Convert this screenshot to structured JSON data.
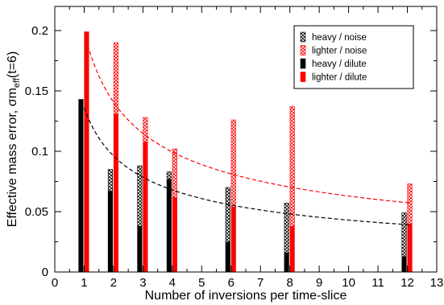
{
  "chart_data": {
    "type": "bar",
    "xlabel": "Number of inversions per time-slice",
    "ylabel_main": "Effective mass error, σm",
    "ylabel_sub": "eff",
    "ylabel_tail": "(t=6)",
    "xlim": [
      0,
      13
    ],
    "ylim": [
      0,
      0.22
    ],
    "xticks": [
      "0",
      "1",
      "2",
      "3",
      "4",
      "5",
      "6",
      "7",
      "8",
      "9",
      "10",
      "11",
      "12",
      "13"
    ],
    "yticks": [
      {
        "value": 0,
        "label": "0"
      },
      {
        "value": 0.05,
        "label": "0.05"
      },
      {
        "value": 0.1,
        "label": "0.1"
      },
      {
        "value": 0.15,
        "label": "0.15"
      },
      {
        "value": 0.2,
        "label": "0.2"
      }
    ],
    "legend_position": "top-right",
    "colors": {
      "heavy": "#000000",
      "lighter": "#ff0000"
    },
    "series": [
      {
        "name": "heavy / noise",
        "pattern": "hatched",
        "color": "#000000",
        "x": [
          1,
          2,
          3,
          4,
          6,
          8,
          12
        ],
        "values": [
          0.143,
          0.085,
          0.088,
          0.083,
          0.07,
          0.057,
          0.049
        ]
      },
      {
        "name": "lighter / noise",
        "pattern": "hatched",
        "color": "#ff0000",
        "x": [
          1,
          2,
          3,
          4,
          6,
          8,
          12
        ],
        "values": [
          0.199,
          0.19,
          0.128,
          0.102,
          0.126,
          0.137,
          0.073
        ]
      },
      {
        "name": "heavy / dilute",
        "pattern": "solid",
        "color": "#000000",
        "x": [
          1,
          2,
          3,
          4,
          6,
          8,
          12
        ],
        "values": [
          0.143,
          0.067,
          0.038,
          0.077,
          0.025,
          0.016,
          0.013
        ]
      },
      {
        "name": "lighter / dilute",
        "pattern": "solid",
        "color": "#ff0000",
        "x": [
          1,
          2,
          3,
          4,
          6,
          8,
          12
        ],
        "values": [
          0.199,
          0.131,
          0.108,
          0.062,
          0.054,
          0.038,
          0.04
        ]
      }
    ],
    "fits": [
      {
        "name": "heavy fit",
        "color": "#000000",
        "style": "dashed",
        "a": 0.136,
        "x_range": [
          1,
          12.1
        ]
      },
      {
        "name": "lighter fit",
        "color": "#ff0000",
        "style": "dashed",
        "a": 0.199,
        "x_range": [
          1.12,
          12.1
        ]
      }
    ]
  }
}
